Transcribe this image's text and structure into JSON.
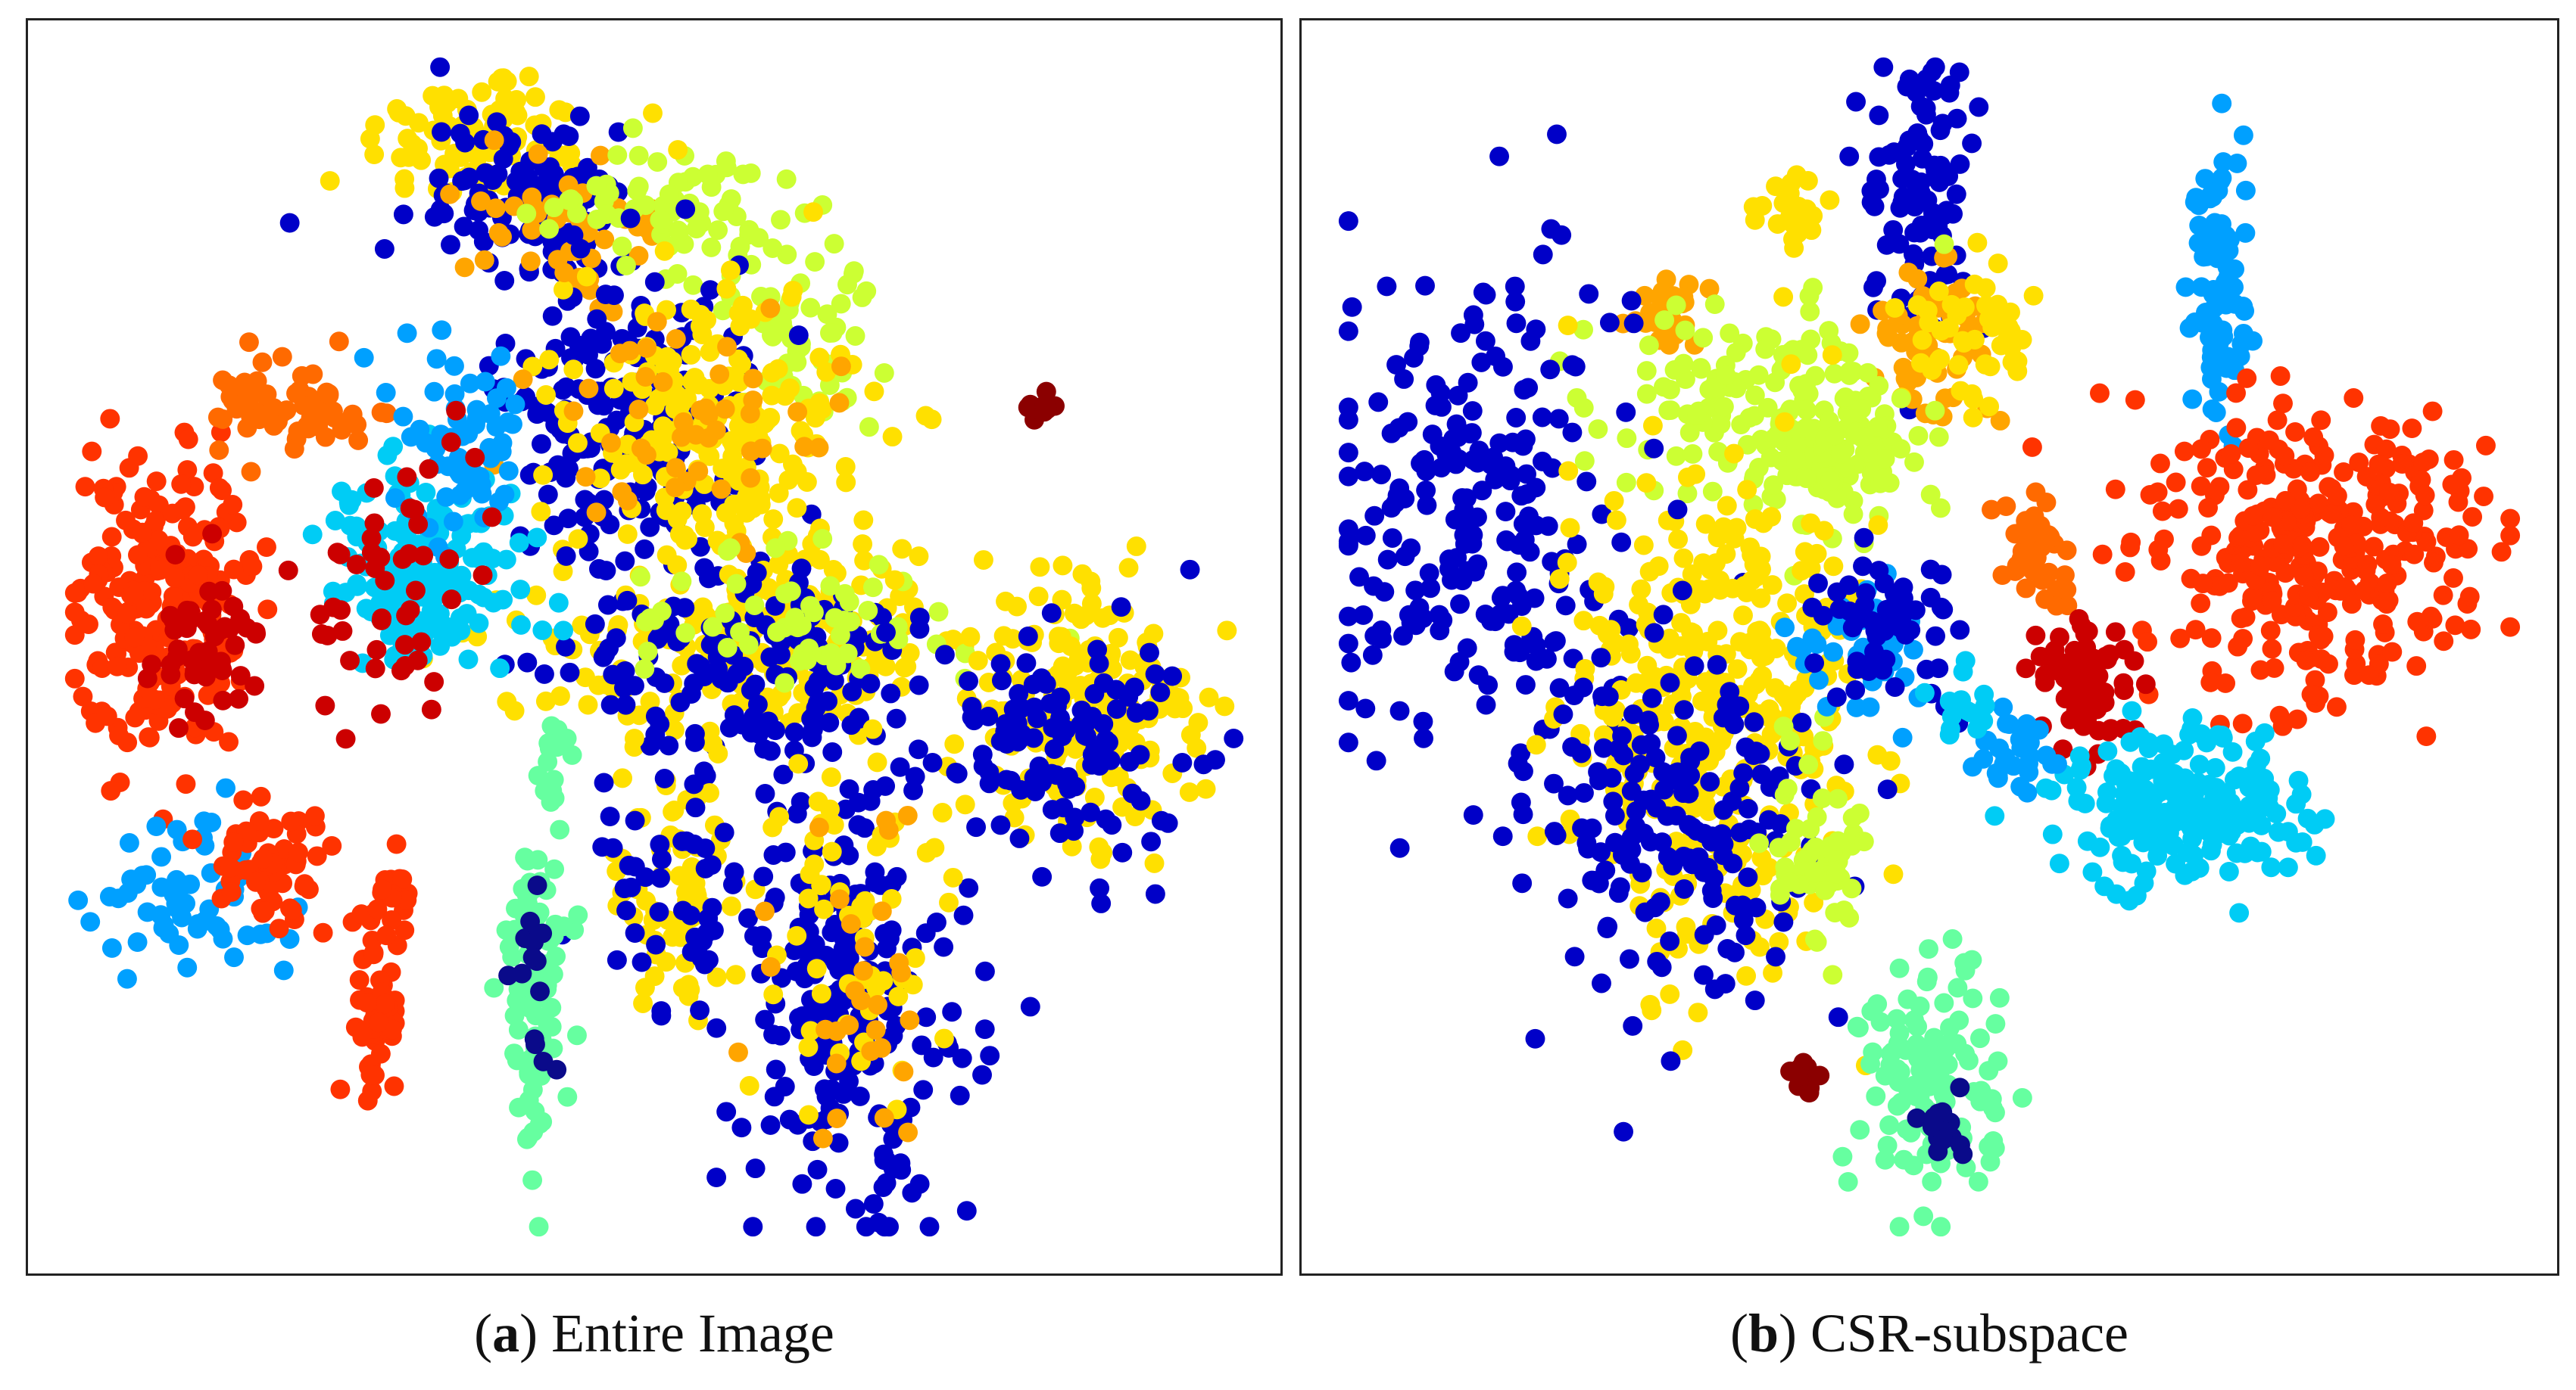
{
  "chart_data": [
    {
      "type": "scatter",
      "panel_letter": "a",
      "caption": "Entire Image",
      "grid": false,
      "axes_visible": false,
      "clusters": [
        {
          "color": "#ffe000",
          "cx": 0.36,
          "cy": 0.08,
          "sx": 0.05,
          "sy": 0.03,
          "n": 90
        },
        {
          "color": "#0000c8",
          "cx": 0.4,
          "cy": 0.13,
          "sx": 0.05,
          "sy": 0.04,
          "n": 110
        },
        {
          "color": "#ffa500",
          "cx": 0.43,
          "cy": 0.15,
          "sx": 0.04,
          "sy": 0.03,
          "n": 50
        },
        {
          "color": "#ccff33",
          "cx": 0.52,
          "cy": 0.14,
          "sx": 0.05,
          "sy": 0.03,
          "n": 70
        },
        {
          "color": "#ccff33",
          "cx": 0.62,
          "cy": 0.24,
          "sx": 0.03,
          "sy": 0.04,
          "n": 60
        },
        {
          "color": "#0000c8",
          "cx": 0.48,
          "cy": 0.31,
          "sx": 0.05,
          "sy": 0.06,
          "n": 200
        },
        {
          "color": "#ffe000",
          "cx": 0.55,
          "cy": 0.32,
          "sx": 0.06,
          "sy": 0.06,
          "n": 200
        },
        {
          "color": "#ffa500",
          "cx": 0.52,
          "cy": 0.3,
          "sx": 0.06,
          "sy": 0.05,
          "n": 50
        },
        {
          "color": "#ffe000",
          "cx": 0.59,
          "cy": 0.5,
          "sx": 0.09,
          "sy": 0.04,
          "n": 220
        },
        {
          "color": "#0000c8",
          "cx": 0.59,
          "cy": 0.52,
          "sx": 0.08,
          "sy": 0.04,
          "n": 140
        },
        {
          "color": "#ccff33",
          "cx": 0.62,
          "cy": 0.48,
          "sx": 0.07,
          "sy": 0.03,
          "n": 60
        },
        {
          "color": "#ffe000",
          "cx": 0.86,
          "cy": 0.55,
          "sx": 0.05,
          "sy": 0.05,
          "n": 200
        },
        {
          "color": "#0000c8",
          "cx": 0.84,
          "cy": 0.58,
          "sx": 0.05,
          "sy": 0.05,
          "n": 120
        },
        {
          "color": "#8b0000",
          "cx": 0.82,
          "cy": 0.3,
          "sx": 0.006,
          "sy": 0.008,
          "n": 12
        },
        {
          "color": "#ff3300",
          "cx": 0.09,
          "cy": 0.47,
          "sx": 0.035,
          "sy": 0.06,
          "n": 230
        },
        {
          "color": "#cc0000",
          "cx": 0.13,
          "cy": 0.5,
          "sx": 0.025,
          "sy": 0.04,
          "n": 50
        },
        {
          "color": "#ff6a00",
          "cx": 0.2,
          "cy": 0.3,
          "sx": 0.03,
          "sy": 0.02,
          "n": 70
        },
        {
          "color": "#00ccf5",
          "cx": 0.31,
          "cy": 0.44,
          "sx": 0.04,
          "sy": 0.04,
          "n": 160
        },
        {
          "color": "#00a0ff",
          "cx": 0.34,
          "cy": 0.33,
          "sx": 0.03,
          "sy": 0.04,
          "n": 60
        },
        {
          "color": "#cc0000",
          "cx": 0.29,
          "cy": 0.46,
          "sx": 0.04,
          "sy": 0.06,
          "n": 50
        },
        {
          "color": "#ffe000",
          "cx": 0.52,
          "cy": 0.7,
          "sx": 0.03,
          "sy": 0.06,
          "n": 70
        },
        {
          "color": "#0000c8",
          "cx": 0.52,
          "cy": 0.71,
          "sx": 0.03,
          "sy": 0.06,
          "n": 50
        },
        {
          "color": "#0000c8",
          "cx": 0.66,
          "cy": 0.78,
          "sx": 0.05,
          "sy": 0.1,
          "n": 230
        },
        {
          "color": "#ffe000",
          "cx": 0.66,
          "cy": 0.74,
          "sx": 0.04,
          "sy": 0.07,
          "n": 60
        },
        {
          "color": "#ffa500",
          "cx": 0.68,
          "cy": 0.78,
          "sx": 0.04,
          "sy": 0.07,
          "n": 30
        },
        {
          "color": "#66ffa0",
          "cx": 0.4,
          "cy": 0.78,
          "sx": 0.015,
          "sy": 0.08,
          "n": 90
        },
        {
          "color": "#0a0a8a",
          "cx": 0.4,
          "cy": 0.76,
          "sx": 0.01,
          "sy": 0.04,
          "n": 15
        },
        {
          "color": "#66ffa0",
          "cx": 0.42,
          "cy": 0.6,
          "sx": 0.01,
          "sy": 0.02,
          "n": 15
        },
        {
          "color": "#00a0ff",
          "cx": 0.11,
          "cy": 0.71,
          "sx": 0.04,
          "sy": 0.03,
          "n": 60
        },
        {
          "color": "#ff3300",
          "cx": 0.18,
          "cy": 0.68,
          "sx": 0.025,
          "sy": 0.02,
          "n": 60
        },
        {
          "color": "#ff3300",
          "cx": 0.27,
          "cy": 0.8,
          "sx": 0.01,
          "sy": 0.04,
          "n": 50
        },
        {
          "color": "#ff3300",
          "cx": 0.28,
          "cy": 0.71,
          "sx": 0.01,
          "sy": 0.015,
          "n": 20
        }
      ]
    },
    {
      "type": "scatter",
      "panel_letter": "b",
      "caption": "CSR-subspace",
      "grid": false,
      "axes_visible": false,
      "clusters": [
        {
          "color": "#0000c8",
          "cx": 0.49,
          "cy": 0.12,
          "sx": 0.025,
          "sy": 0.06,
          "n": 100
        },
        {
          "color": "#ffe000",
          "cx": 0.39,
          "cy": 0.14,
          "sx": 0.015,
          "sy": 0.015,
          "n": 25
        },
        {
          "color": "#ffa500",
          "cx": 0.5,
          "cy": 0.25,
          "sx": 0.03,
          "sy": 0.03,
          "n": 60
        },
        {
          "color": "#ffe000",
          "cx": 0.54,
          "cy": 0.24,
          "sx": 0.03,
          "sy": 0.03,
          "n": 50
        },
        {
          "color": "#ffa500",
          "cx": 0.28,
          "cy": 0.22,
          "sx": 0.02,
          "sy": 0.015,
          "n": 30
        },
        {
          "color": "#ccff33",
          "cx": 0.35,
          "cy": 0.3,
          "sx": 0.06,
          "sy": 0.04,
          "n": 130
        },
        {
          "color": "#ccff33",
          "cx": 0.43,
          "cy": 0.34,
          "sx": 0.03,
          "sy": 0.03,
          "n": 110
        },
        {
          "color": "#00a0ff",
          "cx": 0.74,
          "cy": 0.2,
          "sx": 0.012,
          "sy": 0.06,
          "n": 90
        },
        {
          "color": "#ff3300",
          "cx": 0.82,
          "cy": 0.42,
          "sx": 0.07,
          "sy": 0.06,
          "n": 320
        },
        {
          "color": "#ff6a00",
          "cx": 0.59,
          "cy": 0.42,
          "sx": 0.015,
          "sy": 0.025,
          "n": 45
        },
        {
          "color": "#0000c8",
          "cx": 0.12,
          "cy": 0.4,
          "sx": 0.06,
          "sy": 0.1,
          "n": 230
        },
        {
          "color": "#ffe000",
          "cx": 0.32,
          "cy": 0.56,
          "sx": 0.06,
          "sy": 0.11,
          "n": 380
        },
        {
          "color": "#0000c8",
          "cx": 0.29,
          "cy": 0.66,
          "sx": 0.06,
          "sy": 0.08,
          "n": 180
        },
        {
          "color": "#ccff33",
          "cx": 0.41,
          "cy": 0.67,
          "sx": 0.02,
          "sy": 0.04,
          "n": 60
        },
        {
          "color": "#00a0ff",
          "cx": 0.45,
          "cy": 0.5,
          "sx": 0.03,
          "sy": 0.03,
          "n": 40
        },
        {
          "color": "#0000c8",
          "cx": 0.46,
          "cy": 0.48,
          "sx": 0.03,
          "sy": 0.03,
          "n": 60
        },
        {
          "color": "#cc0000",
          "cx": 0.63,
          "cy": 0.53,
          "sx": 0.02,
          "sy": 0.035,
          "n": 70
        },
        {
          "color": "#00ccf5",
          "cx": 0.71,
          "cy": 0.63,
          "sx": 0.05,
          "sy": 0.03,
          "n": 220
        },
        {
          "color": "#00a0ff",
          "cx": 0.57,
          "cy": 0.59,
          "sx": 0.015,
          "sy": 0.015,
          "n": 30
        },
        {
          "color": "#00ccf5",
          "cx": 0.53,
          "cy": 0.55,
          "sx": 0.01,
          "sy": 0.015,
          "n": 15
        },
        {
          "color": "#66ffa0",
          "cx": 0.5,
          "cy": 0.86,
          "sx": 0.03,
          "sy": 0.05,
          "n": 120
        },
        {
          "color": "#0a0a8a",
          "cx": 0.51,
          "cy": 0.89,
          "sx": 0.015,
          "sy": 0.015,
          "n": 15
        },
        {
          "color": "#8b0000",
          "cx": 0.4,
          "cy": 0.86,
          "sx": 0.006,
          "sy": 0.008,
          "n": 14
        }
      ]
    }
  ]
}
